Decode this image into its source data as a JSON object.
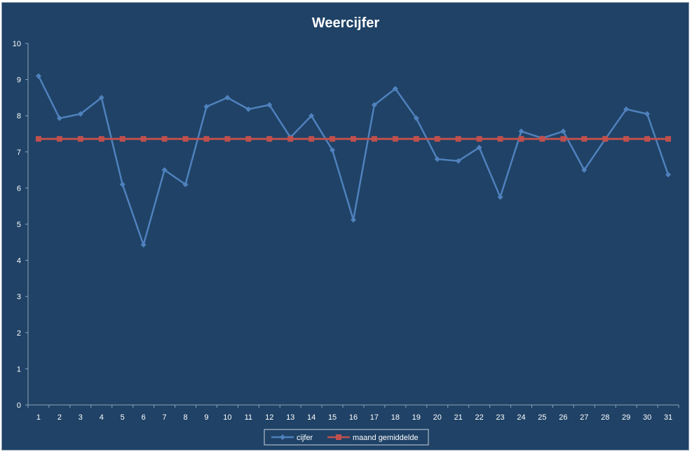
{
  "chart_data": {
    "type": "line",
    "title": "Weercijfer",
    "xlabel": "",
    "ylabel": "",
    "ylim": [
      0,
      10
    ],
    "yticks": [
      0,
      1,
      2,
      3,
      4,
      5,
      6,
      7,
      8,
      9,
      10
    ],
    "categories": [
      "1",
      "2",
      "3",
      "4",
      "5",
      "6",
      "7",
      "8",
      "9",
      "10",
      "11",
      "12",
      "13",
      "14",
      "15",
      "16",
      "17",
      "18",
      "19",
      "20",
      "21",
      "22",
      "23",
      "24",
      "25",
      "26",
      "27",
      "28",
      "29",
      "30",
      "31"
    ],
    "series": [
      {
        "name": "cijfer",
        "color": "#4f81bd",
        "marker": "diamond",
        "values": [
          9.1,
          7.93,
          8.05,
          8.5,
          6.1,
          4.43,
          6.5,
          6.1,
          8.25,
          8.5,
          8.18,
          8.3,
          7.4,
          8.0,
          7.05,
          5.12,
          8.3,
          8.75,
          7.93,
          6.8,
          6.75,
          7.12,
          5.75,
          7.57,
          7.38,
          7.57,
          6.5,
          7.35,
          8.18,
          8.05,
          6.37
        ]
      },
      {
        "name": "maand gemiddelde",
        "color": "#c0504d",
        "marker": "square",
        "values": [
          7.36,
          7.36,
          7.36,
          7.36,
          7.36,
          7.36,
          7.36,
          7.36,
          7.36,
          7.36,
          7.36,
          7.36,
          7.36,
          7.36,
          7.36,
          7.36,
          7.36,
          7.36,
          7.36,
          7.36,
          7.36,
          7.36,
          7.36,
          7.36,
          7.36,
          7.36,
          7.36,
          7.36,
          7.36,
          7.36,
          7.36
        ]
      }
    ],
    "grid": false,
    "legend_position": "bottom"
  }
}
